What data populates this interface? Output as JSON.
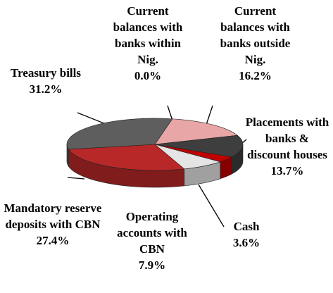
{
  "chart_data": {
    "type": "pie",
    "categories": [
      "Current balances with banks within Nig.",
      "Current balances with banks outside Nig.",
      "Placements with banks & discount houses",
      "Cash",
      "Operating accounts with CBN",
      "Mandatory reserve deposits with CBN",
      "Treasury bills"
    ],
    "values": [
      0.0,
      16.2,
      13.7,
      3.6,
      7.9,
      27.4,
      31.2
    ],
    "value_labels": [
      "0.0%",
      "16.2%",
      "13.7%",
      "3.6%",
      "7.9%",
      "27.4%",
      "31.2%"
    ],
    "colors": [
      "#c00000",
      "#e8a6a6",
      "#3e3e3e",
      "#c00000",
      "#e4e4e4",
      "#b82828",
      "#5e5e5e"
    ]
  }
}
